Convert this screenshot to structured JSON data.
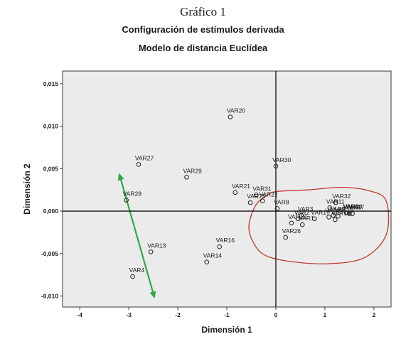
{
  "header": {
    "title": "Gráfico 1",
    "subtitle_line1": "Configuración de estímulos derivada",
    "subtitle_line2": "Modelo de distancia Euclídea"
  },
  "colors": {
    "plot_background": "#ebebeb",
    "points": "#222222",
    "cluster_outline": "#c0392b",
    "arrow": "#2eaa4a"
  },
  "chart_data": {
    "type": "scatter",
    "title": "Configuración de estímulos derivada",
    "subtitle": "Modelo de distancia Euclídea",
    "xlabel": "Dimensión 1",
    "ylabel": "Dimensión 2",
    "xlim": [
      -4.35,
      2.35
    ],
    "ylim": [
      -0.0113,
      0.0165
    ],
    "xticks": [
      -4,
      -3,
      -2,
      -1,
      0,
      1,
      2
    ],
    "xtick_labels": [
      "-4",
      "-3",
      "-2",
      "-1",
      "0",
      "1",
      "2"
    ],
    "yticks": [
      -0.01,
      -0.005,
      0,
      0.005,
      0.01,
      0.015
    ],
    "ytick_labels": [
      "-0,010",
      "-0,005",
      "0,000",
      "0,005",
      "0,010",
      "0,015"
    ],
    "grid": false,
    "reference_lines": {
      "x": 0,
      "y": 0
    },
    "points": [
      {
        "label": "VAR20",
        "x": -0.93,
        "y": 0.0111
      },
      {
        "label": "VAR30",
        "x": 0.0,
        "y": 0.0053
      },
      {
        "label": "VAR27",
        "x": -2.8,
        "y": 0.0055
      },
      {
        "label": "VAR29",
        "x": -1.82,
        "y": 0.004
      },
      {
        "label": "VAR21",
        "x": -0.83,
        "y": 0.0022
      },
      {
        "label": "VAR31",
        "x": -0.4,
        "y": 0.0019
      },
      {
        "label": "VAR28",
        "x": -3.05,
        "y": 0.0013
      },
      {
        "label": "VAR25",
        "x": -0.52,
        "y": 0.001
      },
      {
        "label": "VAR22",
        "x": -0.27,
        "y": 0.0012
      },
      {
        "label": "VAR8",
        "x": 0.03,
        "y": 0.0003
      },
      {
        "label": "VAR3",
        "x": 0.52,
        "y": -0.0005
      },
      {
        "label": "VAR2",
        "x": 0.45,
        "y": -0.0009
      },
      {
        "label": "VAR17",
        "x": 0.79,
        "y": -0.0009
      },
      {
        "label": "VAR32",
        "x": 1.22,
        "y": 0.001
      },
      {
        "label": "VAR11",
        "x": 1.1,
        "y": 0.0004
      },
      {
        "label": "VAR10",
        "x": 1.45,
        "y": -0.0002
      },
      {
        "label": "VAR5",
        "x": 1.5,
        "y": -0.0003
      },
      {
        "label": "VAR7",
        "x": 1.56,
        "y": -0.0003
      },
      {
        "label": "VAR15",
        "x": 1.08,
        "y": -0.0007
      },
      {
        "label": "VAR19",
        "x": 1.21,
        "y": -0.001
      },
      {
        "label": "VAR9",
        "x": 1.17,
        "y": -0.0005
      },
      {
        "label": "VAR18",
        "x": 1.27,
        "y": -0.0006
      },
      {
        "label": "VAR6",
        "x": 1.44,
        "y": -0.0002
      },
      {
        "label": "VAR1",
        "x": 0.54,
        "y": -0.0016
      },
      {
        "label": "VAR12",
        "x": 0.32,
        "y": -0.0014
      },
      {
        "label": "VAR26",
        "x": 0.2,
        "y": -0.0031
      },
      {
        "label": "VAR16",
        "x": -1.15,
        "y": -0.0042
      },
      {
        "label": "VAR14",
        "x": -1.41,
        "y": -0.006
      },
      {
        "label": "VAR13",
        "x": -2.55,
        "y": -0.0048
      },
      {
        "label": "VAR4",
        "x": -2.92,
        "y": -0.0077
      }
    ],
    "annotations": {
      "arrow_start": {
        "x": -3.2,
        "y": 0.0045
      },
      "arrow_end": {
        "x": -2.47,
        "y": -0.0103
      },
      "cluster_outline": [
        [
          0.0,
          0.0023
        ],
        [
          0.65,
          0.0025
        ],
        [
          1.35,
          0.0028
        ],
        [
          1.9,
          0.0024
        ],
        [
          2.25,
          0.0012
        ],
        [
          2.25,
          -0.0028
        ],
        [
          1.8,
          -0.0055
        ],
        [
          1.05,
          -0.0062
        ],
        [
          0.25,
          -0.0059
        ],
        [
          -0.22,
          -0.0052
        ],
        [
          -0.45,
          -0.0038
        ],
        [
          -0.55,
          -0.0018
        ],
        [
          -0.42,
          0.0006
        ],
        [
          -0.2,
          0.0018
        ]
      ]
    }
  }
}
